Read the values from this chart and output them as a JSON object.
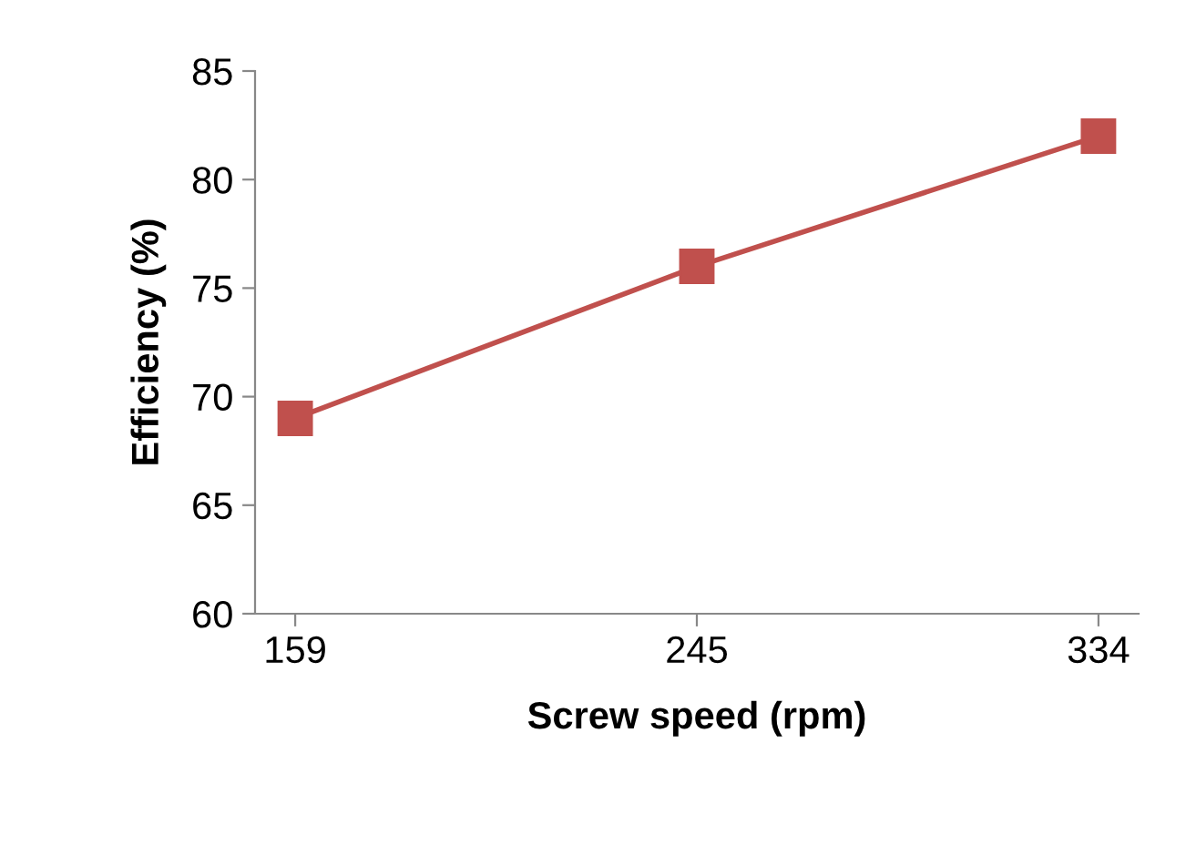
{
  "chart_data": {
    "type": "line",
    "xlabel": "Screw speed (rpm)",
    "ylabel": "Efficiency (%)",
    "categories": [
      "159",
      "245",
      "334"
    ],
    "series": [
      {
        "color": "#c0504d",
        "values": [
          69,
          76,
          82
        ]
      }
    ],
    "ylim": [
      60,
      85
    ],
    "yticks": [
      60,
      65,
      70,
      75,
      80,
      85
    ],
    "grid": false,
    "legend": false,
    "marker": "square",
    "line_style": "solid"
  }
}
